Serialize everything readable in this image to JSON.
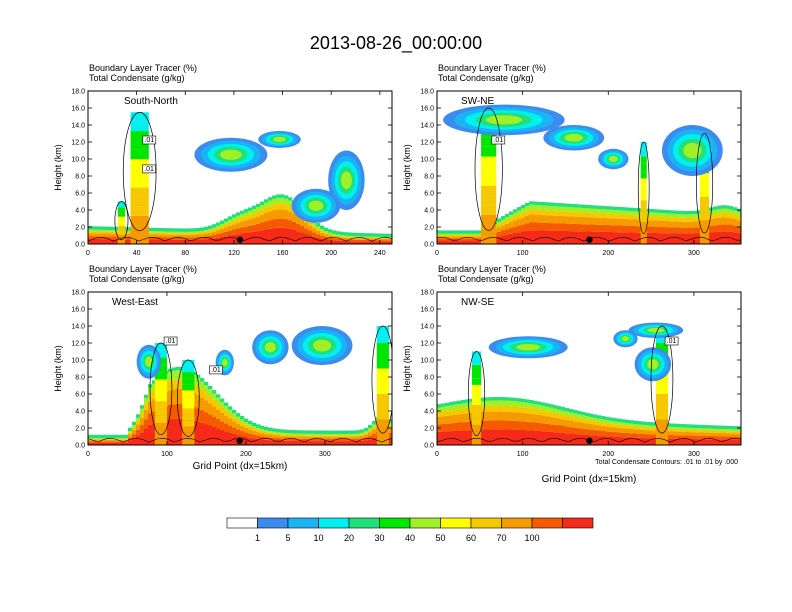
{
  "title": "2013-08-26_00:00:00",
  "chart_data": [
    {
      "type": "heatmap",
      "panel": "South-North",
      "subtitle_lines": [
        "Boundary Layer Tracer    (%)",
        "Total Condensate    (g/kg)"
      ],
      "ylabel": "Height (km)",
      "xlabel": "",
      "xlim": [
        0,
        250
      ],
      "ylim": [
        0,
        18
      ],
      "xticks": [
        0,
        40,
        80,
        120,
        160,
        200,
        240
      ],
      "yticks": [
        "0.0",
        "2.0",
        "4.0",
        "6.0",
        "8.0",
        "10.0",
        "12.0",
        "14.0",
        "16.0",
        "18.0"
      ],
      "contour_labels": [
        ".01",
        ".01"
      ],
      "marker_x": 125
    },
    {
      "type": "heatmap",
      "panel": "SW-NE",
      "subtitle_lines": [
        "Boundary Layer Tracer    (%)",
        "Total Condensate    (g/kg)"
      ],
      "ylabel": "Height (km)",
      "xlabel": "",
      "xlim": [
        0,
        355
      ],
      "ylim": [
        0,
        18
      ],
      "xticks": [
        0,
        100,
        200,
        300
      ],
      "yticks": [
        "0.0",
        "2.0",
        "4.0",
        "6.0",
        "8.0",
        "10.0",
        "12.0",
        "14.0",
        "16.0",
        "18.0"
      ],
      "contour_labels": [
        ".01"
      ],
      "marker_x": 178
    },
    {
      "type": "heatmap",
      "panel": "West-East",
      "subtitle_lines": [
        "Boundary Layer Tracer    (%)",
        "Total Condensate    (g/kg)"
      ],
      "ylabel": "Height (km)",
      "xlabel": "Grid Point (dx=15km)",
      "xlim": [
        0,
        385
      ],
      "ylim": [
        0,
        18
      ],
      "xticks": [
        0,
        100,
        200,
        300
      ],
      "yticks": [
        "0.0",
        "2.0",
        "4.0",
        "6.0",
        "8.0",
        "10.0",
        "12.0",
        "14.0",
        "16.0",
        "18.0"
      ],
      "contour_labels": [
        ".01",
        ".01"
      ],
      "marker_x": 192
    },
    {
      "type": "heatmap",
      "panel": "NW-SE",
      "subtitle_lines": [
        "Boundary Layer Tracer    (%)",
        "Total Condensate    (g/kg)"
      ],
      "ylabel": "Height (km)",
      "xlabel": "Grid Point (dx=15km)",
      "xlim": [
        0,
        355
      ],
      "ylim": [
        0,
        18
      ],
      "xticks": [
        0,
        100,
        200,
        300
      ],
      "yticks": [
        "0.0",
        "2.0",
        "4.0",
        "6.0",
        "8.0",
        "10.0",
        "12.0",
        "14.0",
        "16.0",
        "18.0"
      ],
      "contour_labels": [
        ".01"
      ],
      "marker_x": 178
    }
  ],
  "contour_note": "Total Condensate Contours: .01 to .01 by .000",
  "colorbar": {
    "labels": [
      "1",
      "5",
      "10",
      "20",
      "30",
      "40",
      "50",
      "60",
      "70",
      "100"
    ],
    "colors": [
      "#ffffff",
      "#3c8cf0",
      "#1ab4f5",
      "#00f0f0",
      "#1fe07a",
      "#00e600",
      "#a0f028",
      "#ffff00",
      "#f5c800",
      "#f59b00",
      "#f55a00",
      "#f52a18"
    ]
  }
}
